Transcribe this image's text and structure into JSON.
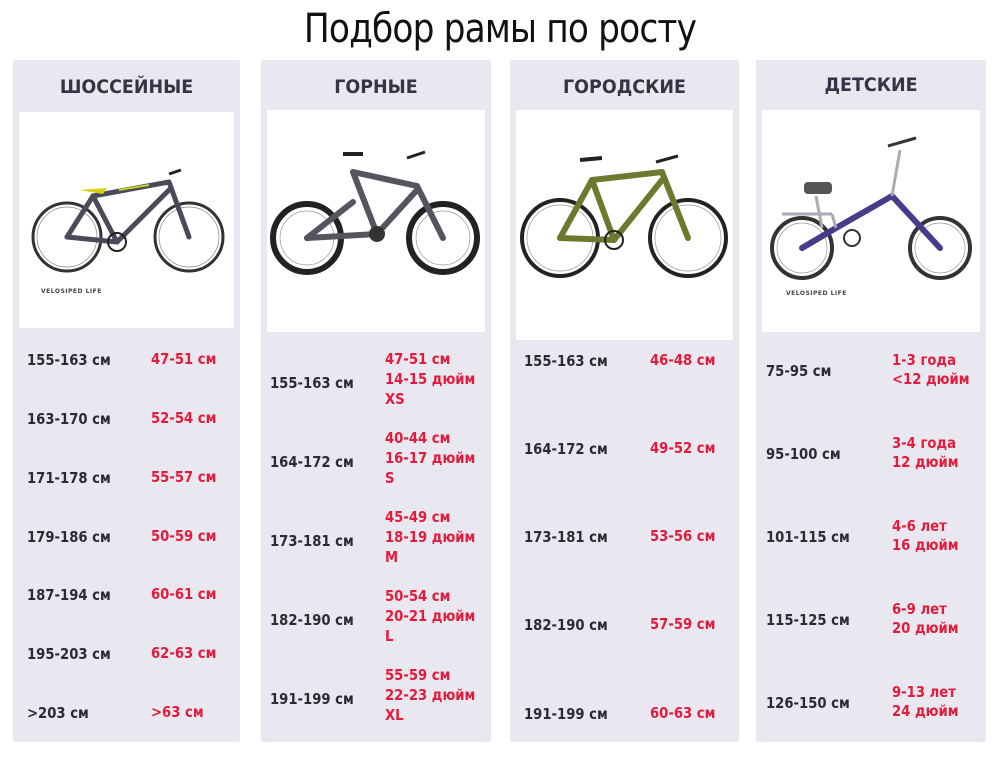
{
  "title": "Подбор рамы по росту",
  "logo_text": "VELOSIPED LIFE",
  "columns": [
    {
      "name": "ШОССЕЙНЫЕ",
      "rows": [
        {
          "height": "155-163 см",
          "size": [
            "47-51 см"
          ]
        },
        {
          "height": "163-170 см",
          "size": [
            "52-54 см"
          ]
        },
        {
          "height": "171-178 см",
          "size": [
            "55-57 см"
          ]
        },
        {
          "height": "179-186 см",
          "size": [
            "50-59 см"
          ]
        },
        {
          "height": "187-194 см",
          "size": [
            "60-61 см"
          ]
        },
        {
          "height": "195-203 см",
          "size": [
            "62-63 см"
          ]
        },
        {
          "height": ">203 см",
          "size": [
            ">63 см"
          ]
        }
      ]
    },
    {
      "name": "ГОРНЫЕ",
      "rows": [
        {
          "height": "155-163 см",
          "size": [
            "47-51 см",
            "14-15 дюйм",
            "XS"
          ]
        },
        {
          "height": "164-172 см",
          "size": [
            "40-44 см",
            "16-17 дюйм",
            "S"
          ]
        },
        {
          "height": "173-181 см",
          "size": [
            "45-49 см",
            "18-19 дюйм",
            "M"
          ]
        },
        {
          "height": "182-190 см",
          "size": [
            "50-54 см",
            "20-21 дюйм",
            "L"
          ]
        },
        {
          "height": "191-199 см",
          "size": [
            "55-59 см",
            "22-23 дюйм",
            "XL"
          ]
        }
      ]
    },
    {
      "name": "ГОРОДСКИЕ",
      "rows": [
        {
          "height": "155-163 см",
          "size": [
            "46-48 см"
          ]
        },
        {
          "height": "164-172 см",
          "size": [
            "49-52 см"
          ]
        },
        {
          "height": "173-181 см",
          "size": [
            "53-56 см"
          ]
        },
        {
          "height": "182-190 см",
          "size": [
            "57-59 см"
          ]
        },
        {
          "height": "191-199 см",
          "size": [
            "60-63 см"
          ]
        }
      ]
    },
    {
      "name": "ДЕТСКИЕ",
      "rows": [
        {
          "height": "75-95 см",
          "size": [
            "1-3 года",
            "<12 дюйм"
          ]
        },
        {
          "height": "95-100 см",
          "size": [
            "3-4 года",
            "12 дюйм"
          ]
        },
        {
          "height": "101-115 см",
          "size": [
            "4-6 лет",
            "16 дюйм"
          ]
        },
        {
          "height": "115-125 см",
          "size": [
            "6-9 лет",
            "20 дюйм"
          ]
        },
        {
          "height": "126-150 см",
          "size": [
            "9-13 лет",
            "24 дюйм"
          ]
        }
      ]
    }
  ]
}
